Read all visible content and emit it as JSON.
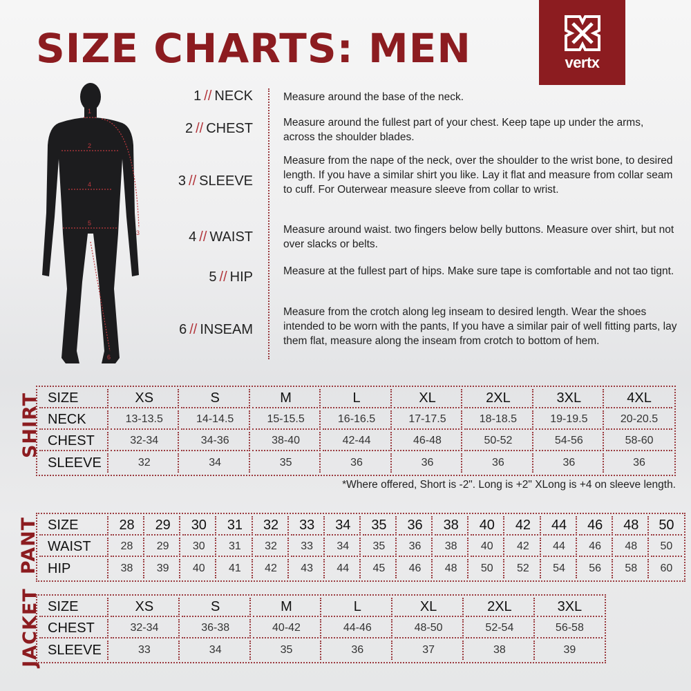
{
  "title": "SIZE CHARTS: MEN",
  "logo": {
    "word": "vertx",
    "color": "#8c1c20"
  },
  "figure_markers": [
    "1",
    "2",
    "3",
    "4",
    "5",
    "6"
  ],
  "measurements": [
    {
      "num": "1",
      "sep": "//",
      "name": "NECK",
      "desc": "Measure around the base of the neck."
    },
    {
      "num": "2",
      "sep": "//",
      "name": "CHEST",
      "desc": "Measure around the fullest part of your chest. Keep tape up under the arms, across the shoulder blades."
    },
    {
      "num": "3",
      "sep": "//",
      "name": "SLEEVE",
      "desc": "Measure from the nape of the neck, over the shoulder to the wrist bone, to desired length. If you have a similar shirt you like. Lay it flat and measure from collar seam to cuff. For Outerwear measure sleeve from collar to wrist."
    },
    {
      "num": "4",
      "sep": "//",
      "name": "WAIST",
      "desc": "Measure around waist. two fingers below belly buttons. Measure over shirt, but not over slacks or belts."
    },
    {
      "num": "5",
      "sep": "//",
      "name": "HIP",
      "desc": "Measure at the fullest part of hips. Make sure tape is comfortable and not tao tignt."
    },
    {
      "num": "6",
      "sep": "//",
      "name": "INSEAM",
      "desc": "Measure from the crotch along leg inseam to desired length. Wear the shoes intended to be worn with the pants, If you have a similar pair of well fitting parts, lay them flat, measure along the inseam from crotch to bottom of hem."
    }
  ],
  "shirt": {
    "label": "SHIRT",
    "rows": [
      [
        "SIZE",
        "XS",
        "S",
        "M",
        "L",
        "XL",
        "2XL",
        "3XL",
        "4XL"
      ],
      [
        "NECK",
        "13-13.5",
        "14-14.5",
        "15-15.5",
        "16-16.5",
        "17-17.5",
        "18-18.5",
        "19-19.5",
        "20-20.5"
      ],
      [
        "CHEST",
        "32-34",
        "34-36",
        "38-40",
        "42-44",
        "46-48",
        "50-52",
        "54-56",
        "58-60"
      ],
      [
        "SLEEVE",
        "32",
        "34",
        "35",
        "36",
        "36",
        "36",
        "36",
        "36"
      ]
    ],
    "note": "*Where offered, Short is -2\". Long is +2\" XLong is +4 on sleeve length."
  },
  "pant": {
    "label": "PANT",
    "rows": [
      [
        "SIZE",
        "28",
        "29",
        "30",
        "31",
        "32",
        "33",
        "34",
        "35",
        "36",
        "38",
        "40",
        "42",
        "44",
        "46",
        "48",
        "50"
      ],
      [
        "WAIST",
        "28",
        "29",
        "30",
        "31",
        "32",
        "33",
        "34",
        "35",
        "36",
        "38",
        "40",
        "42",
        "44",
        "46",
        "48",
        "50"
      ],
      [
        "HIP",
        "38",
        "39",
        "40",
        "41",
        "42",
        "43",
        "44",
        "45",
        "46",
        "48",
        "50",
        "52",
        "54",
        "56",
        "58",
        "60"
      ]
    ]
  },
  "jacket": {
    "label": "JACKET",
    "rows": [
      [
        "SIZE",
        "XS",
        "S",
        "M",
        "L",
        "XL",
        "2XL",
        "3XL"
      ],
      [
        "CHEST",
        "32-34",
        "36-38",
        "40-42",
        "44-46",
        "48-50",
        "52-54",
        "56-58"
      ],
      [
        "SLEEVE",
        "33",
        "34",
        "35",
        "36",
        "37",
        "38",
        "39"
      ]
    ]
  }
}
